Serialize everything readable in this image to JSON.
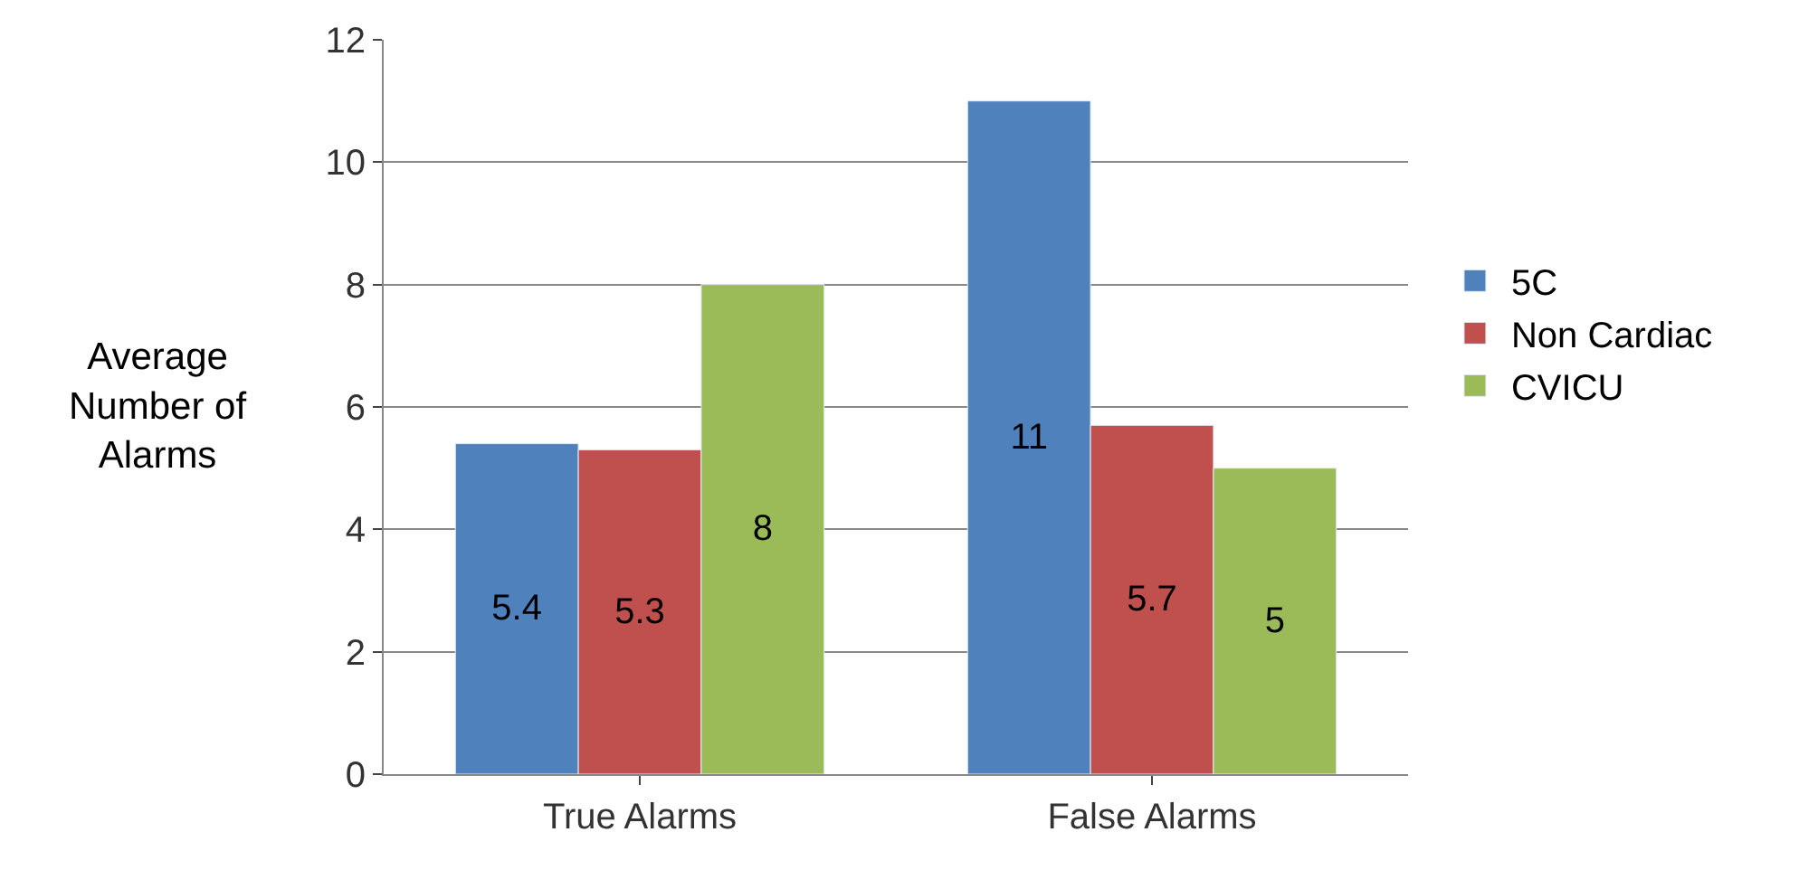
{
  "chart_data": {
    "type": "bar",
    "categories": [
      "True Alarms",
      "False Alarms"
    ],
    "series": [
      {
        "name": "5C",
        "color": "#4f81bd",
        "values": [
          5.4,
          11
        ]
      },
      {
        "name": "Non Cardiac",
        "color": "#c0504d",
        "values": [
          5.3,
          5.7
        ]
      },
      {
        "name": "CVICU",
        "color": "#9bbb59",
        "values": [
          8,
          5
        ]
      }
    ],
    "ylabel": "Average Number of Alarms",
    "ylim": [
      0,
      12
    ],
    "yticks": [
      0,
      2,
      4,
      6,
      8,
      10,
      12
    ],
    "grid": "y",
    "legend": "right",
    "data_labels": true
  }
}
